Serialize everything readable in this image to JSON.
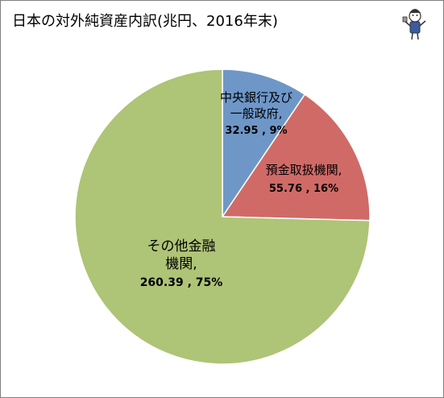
{
  "chart_data": {
    "type": "pie",
    "title": "日本の対外純資産内訳(兆円、2016年末)",
    "slices": [
      {
        "name_lines": [
          "中央銀行及び",
          "一般政府,"
        ],
        "value": 32.95,
        "percent": "9%",
        "value_label": "32.95 , 9%",
        "color": "#6e97c8"
      },
      {
        "name_lines": [
          "預金取扱機関,"
        ],
        "value": 55.76,
        "percent": "16%",
        "value_label": "55.76 , 16%",
        "color": "#d06a67"
      },
      {
        "name_lines": [
          "その他金融",
          "機関,"
        ],
        "value": 260.39,
        "percent": "75%",
        "value_label": "260.39 , 75%",
        "color": "#aec476"
      }
    ],
    "start_angle_deg": 0,
    "direction": "clockwise",
    "legend": "none"
  },
  "logo": {
    "icon": "mascot-icon"
  }
}
